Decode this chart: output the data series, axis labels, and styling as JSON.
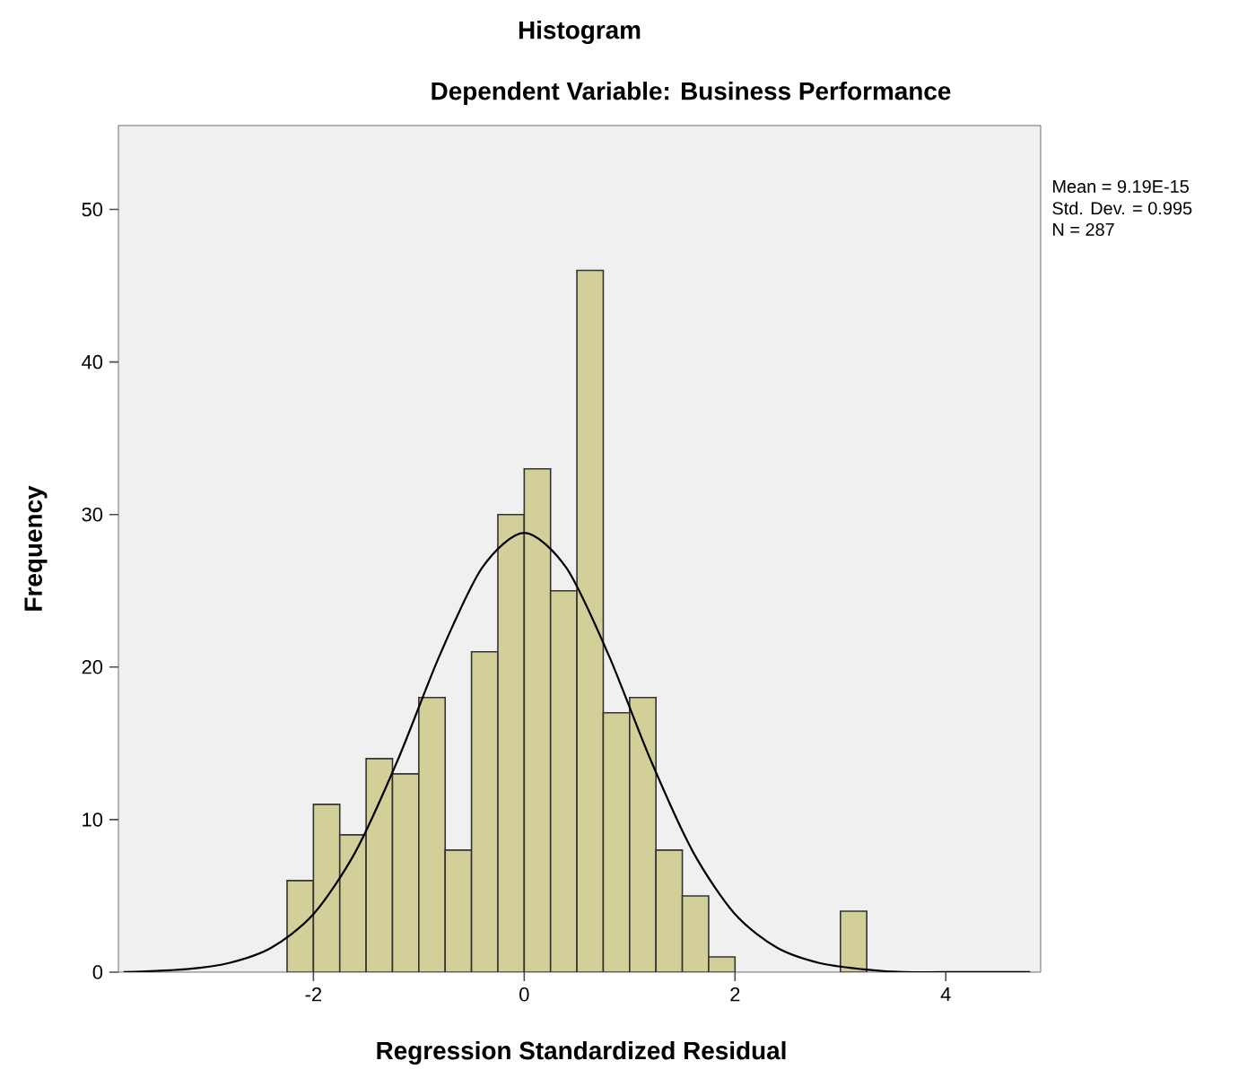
{
  "chart_data": {
    "type": "histogram",
    "title": "Histogram",
    "subtitle": "Dependent Variable: Business Performance",
    "xlabel": "Regression Standardized Residual",
    "ylabel": "Frequency",
    "annotations": [
      "Mean = 9.19E-15",
      "Std. Dev. = 0.995",
      "N = 287"
    ],
    "xlim": [
      -3.85,
      4.9
    ],
    "ylim": [
      0,
      55.5
    ],
    "xticks": [
      -2,
      0,
      2,
      4
    ],
    "yticks": [
      0,
      10,
      20,
      30,
      40,
      50
    ],
    "grid": false,
    "series": [
      {
        "color": "#d3cf98",
        "bins": [
          -2.25,
          -2.0,
          -1.75,
          -1.5,
          -1.25,
          -1.0,
          -0.75,
          -0.5,
          -0.25,
          0,
          0.25,
          0.5,
          0.75,
          1.0,
          1.25,
          1.5,
          1.75,
          2.0,
          2.25,
          2.5,
          2.75,
          3.0,
          3.25
        ],
        "values": [
          6,
          11,
          9,
          14,
          13,
          18,
          8,
          21,
          30,
          33,
          25,
          46,
          17,
          18,
          8,
          5,
          1,
          0,
          0,
          0,
          0,
          4
        ]
      },
      {
        "type": "line",
        "color": "#000000",
        "x": [
          -3.8,
          -3.2,
          -2.8,
          -2.4,
          -2.0,
          -1.6,
          -1.2,
          -0.8,
          -0.4,
          0,
          0.4,
          0.8,
          1.2,
          1.6,
          2.0,
          2.4,
          2.8,
          3.2,
          3.6,
          4.0,
          4.8
        ],
        "values": [
          0,
          0.2,
          0.6,
          1.6,
          3.8,
          7.9,
          13.9,
          20.8,
          26.5,
          28.8,
          26.5,
          20.8,
          13.9,
          7.9,
          3.8,
          1.6,
          0.6,
          0.2,
          0,
          0,
          0
        ]
      }
    ]
  }
}
